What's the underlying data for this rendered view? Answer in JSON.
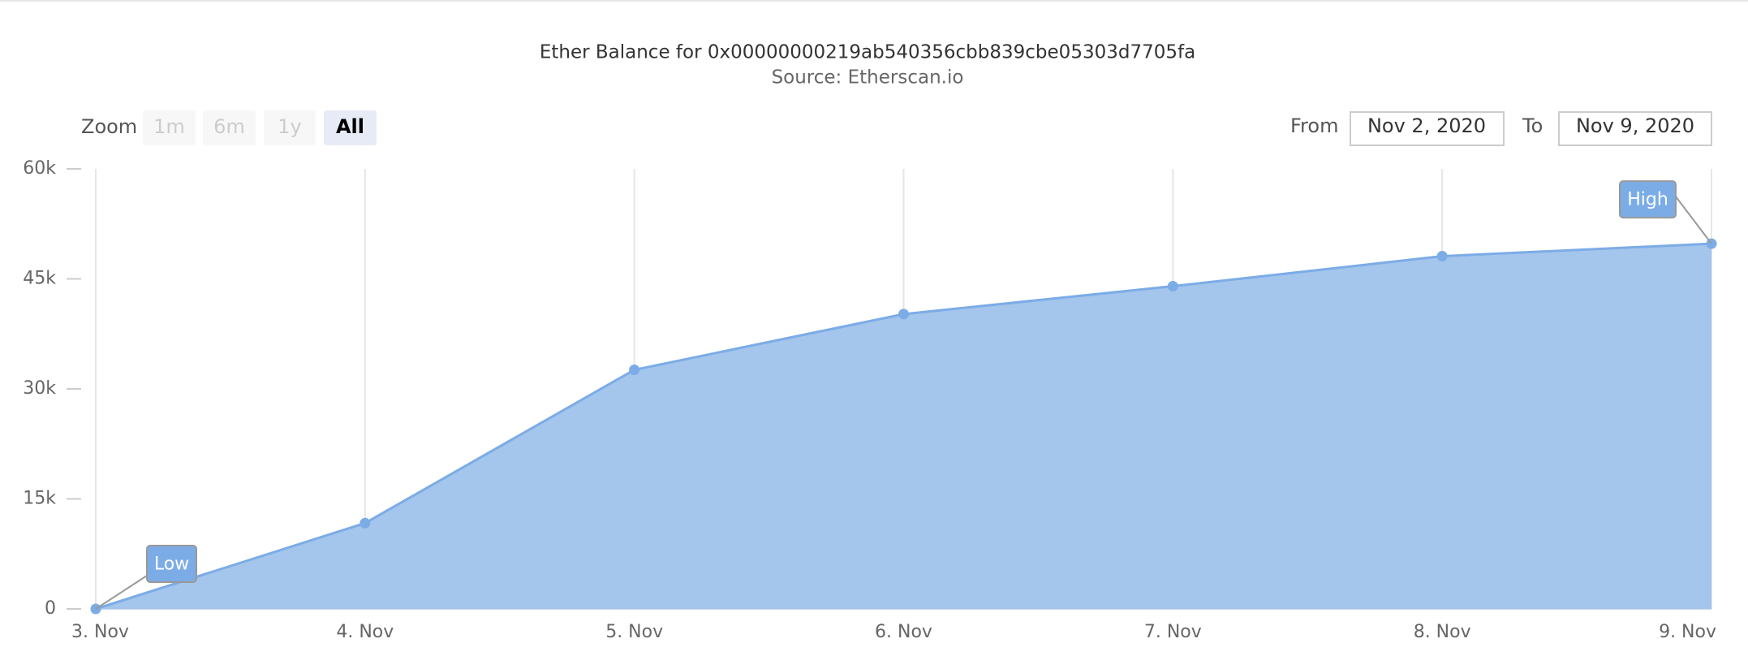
{
  "chart_data": {
    "type": "area",
    "title": "Ether Balance for 0x00000000219ab540356cbb839cbe05303d7705fa",
    "subtitle": "Source: Etherscan.io",
    "categories": [
      "3. Nov",
      "4. Nov",
      "5. Nov",
      "6. Nov",
      "7. Nov",
      "8. Nov",
      "9. Nov"
    ],
    "values": [
      0,
      11700,
      32600,
      40200,
      44000,
      48100,
      49800
    ],
    "color": "#7cacE6",
    "fill_color": "#a4c5ec",
    "ylim": [
      0,
      60000
    ],
    "yticks": [
      0,
      {
        "value": 15000,
        "label": "15k"
      },
      {
        "value": 30000,
        "label": "30k"
      },
      {
        "value": 45000,
        "label": "45k"
      },
      {
        "value": 60000,
        "label": "60k"
      }
    ],
    "grid": true,
    "annotations": [
      {
        "text": "Low"
      },
      {
        "text": "High"
      }
    ]
  },
  "controls": {
    "zoom_label": "Zoom",
    "zoom_buttons": [
      "1m",
      "6m",
      "1y",
      "All"
    ],
    "zoom_selected": 3,
    "from_label": "From",
    "from_value": "Nov 2, 2020",
    "to_label": "To",
    "to_value": "Nov 9, 2020"
  }
}
